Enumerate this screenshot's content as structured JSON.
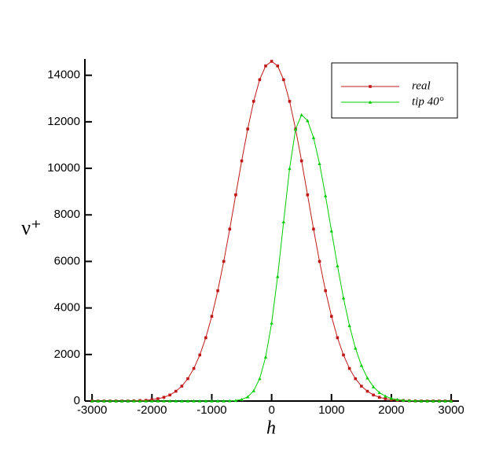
{
  "chart_data": {
    "type": "line",
    "x_label": "h",
    "y_label": "ν⁺",
    "x": [
      -3000,
      -2900,
      -2800,
      -2700,
      -2600,
      -2500,
      -2400,
      -2300,
      -2200,
      -2100,
      -2000,
      -1900,
      -1800,
      -1700,
      -1600,
      -1500,
      -1400,
      -1300,
      -1200,
      -1100,
      -1000,
      -900,
      -800,
      -700,
      -600,
      -500,
      -400,
      -300,
      -200,
      -100,
      0,
      100,
      200,
      300,
      400,
      500,
      600,
      700,
      800,
      900,
      1000,
      1100,
      1200,
      1300,
      1400,
      1500,
      1600,
      1700,
      1800,
      1900,
      2000,
      2100,
      2200,
      2300,
      2400,
      2500,
      2600,
      2700,
      2800,
      2900,
      3000
    ],
    "series": [
      {
        "name": "real",
        "color": "#c01818",
        "marker": "square",
        "values": [
          0,
          0,
          0,
          0,
          0,
          0,
          0,
          10,
          20,
          30,
          60,
          100,
          160,
          260,
          420,
          640,
          960,
          1400,
          1980,
          2720,
          3640,
          4740,
          6000,
          7390,
          8860,
          10320,
          11690,
          12880,
          13810,
          14400,
          14600,
          14400,
          13810,
          12880,
          11690,
          10320,
          8860,
          7390,
          6000,
          4740,
          3640,
          2720,
          1980,
          1400,
          960,
          640,
          420,
          260,
          160,
          100,
          60,
          30,
          20,
          10,
          0,
          0,
          0,
          0,
          0,
          0,
          0
        ]
      },
      {
        "name": "tip 40°",
        "color": "#00cc00",
        "marker": "triangle",
        "values": [
          0,
          0,
          0,
          0,
          0,
          0,
          0,
          0,
          0,
          0,
          0,
          0,
          0,
          0,
          0,
          0,
          0,
          0,
          0,
          0,
          0,
          0,
          0,
          10,
          20,
          70,
          180,
          440,
          960,
          1890,
          3350,
          5350,
          7700,
          9990,
          11680,
          12300,
          12050,
          11320,
          10200,
          8820,
          7310,
          5810,
          4430,
          3240,
          2270,
          1530,
          990,
          610,
          360,
          210,
          110,
          60,
          30,
          20,
          10,
          0,
          0,
          0,
          0,
          0,
          0
        ]
      }
    ],
    "xlim": [
      -3120,
      3130
    ],
    "ylim": [
      0,
      14700
    ],
    "xticks": [
      -3000,
      -2000,
      -1000,
      0,
      1000,
      2000,
      3000
    ],
    "yticks": [
      0,
      2000,
      4000,
      6000,
      8000,
      10000,
      12000,
      14000
    ],
    "legend": "top-right"
  }
}
